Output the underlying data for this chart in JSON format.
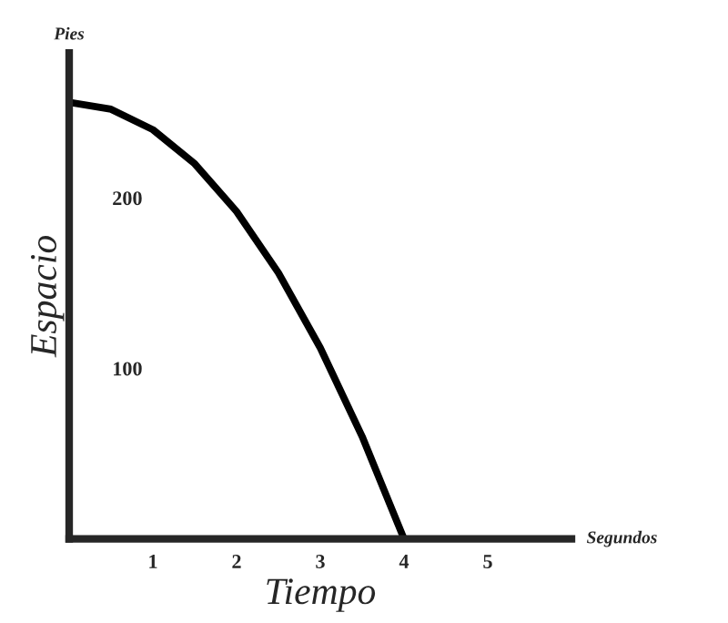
{
  "chart_data": {
    "type": "line",
    "xlabel": "Tiempo",
    "ylabel": "Espacio",
    "annotations": [
      "Pies",
      "Segundos"
    ],
    "x": [
      0,
      0.5,
      1,
      1.5,
      2,
      2.5,
      3,
      3.5,
      4
    ],
    "series": [
      {
        "color": "#000000",
        "values": [
          256,
          252,
          240,
          220,
          192,
          156,
          112,
          60,
          0
        ]
      }
    ],
    "xlim": [
      0,
      6
    ],
    "ylim": [
      0,
      285
    ],
    "xticks": [
      1,
      2,
      3,
      4,
      5
    ],
    "yticks": [
      100,
      200
    ],
    "grid": false,
    "legend": false,
    "marker": "none",
    "line_style": "solid"
  }
}
